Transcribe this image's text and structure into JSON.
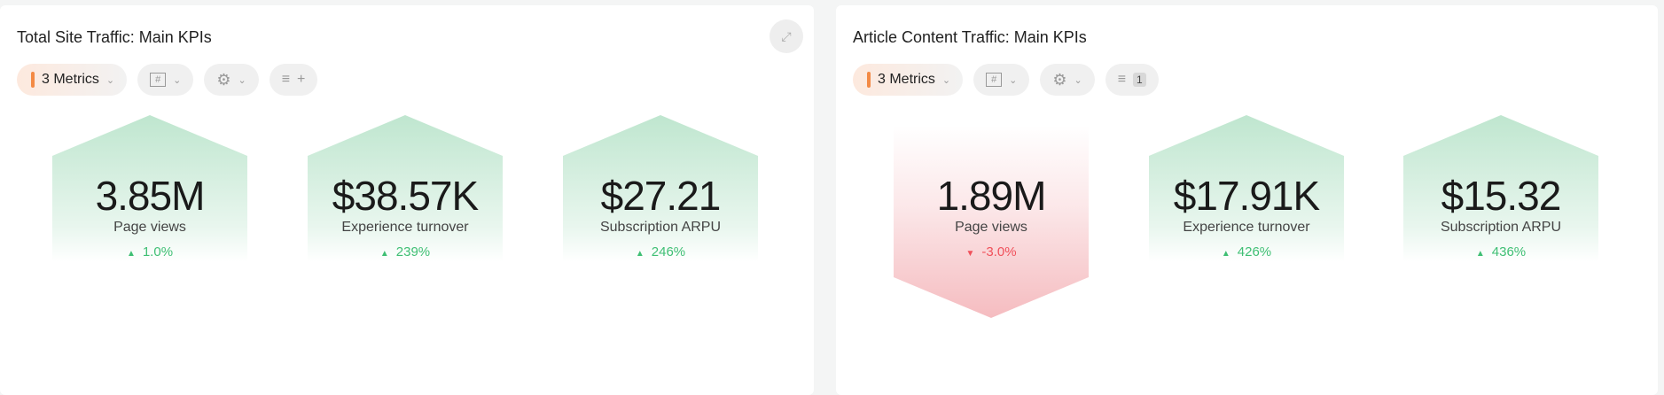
{
  "colors": {
    "up": "#3fbf74",
    "down": "#f0505a",
    "accent": "#f38a45",
    "green_fill": "#bfe6cf",
    "red_fill": "#f5bcc0"
  },
  "panels": [
    {
      "title": "Total Site Traffic: Main KPIs",
      "metrics_label": "3 Metrics",
      "filter_suffix": "+",
      "expand_icon": "expand-icon",
      "kpis": [
        {
          "value": "3.85M",
          "label": "Page views",
          "change": "1.0%",
          "direction": "up"
        },
        {
          "value": "$38.57K",
          "label": "Experience turnover",
          "change": "239%",
          "direction": "up"
        },
        {
          "value": "$27.21",
          "label": "Subscription ARPU",
          "change": "246%",
          "direction": "up"
        }
      ]
    },
    {
      "title": "Article Content Traffic: Main KPIs",
      "metrics_label": "3 Metrics",
      "filter_suffix": "1",
      "kpis": [
        {
          "value": "1.89M",
          "label": "Page views",
          "change": "-3.0%",
          "direction": "down"
        },
        {
          "value": "$17.91K",
          "label": "Experience turnover",
          "change": "426%",
          "direction": "up"
        },
        {
          "value": "$15.32",
          "label": "Subscription ARPU",
          "change": "436%",
          "direction": "up"
        }
      ]
    }
  ]
}
